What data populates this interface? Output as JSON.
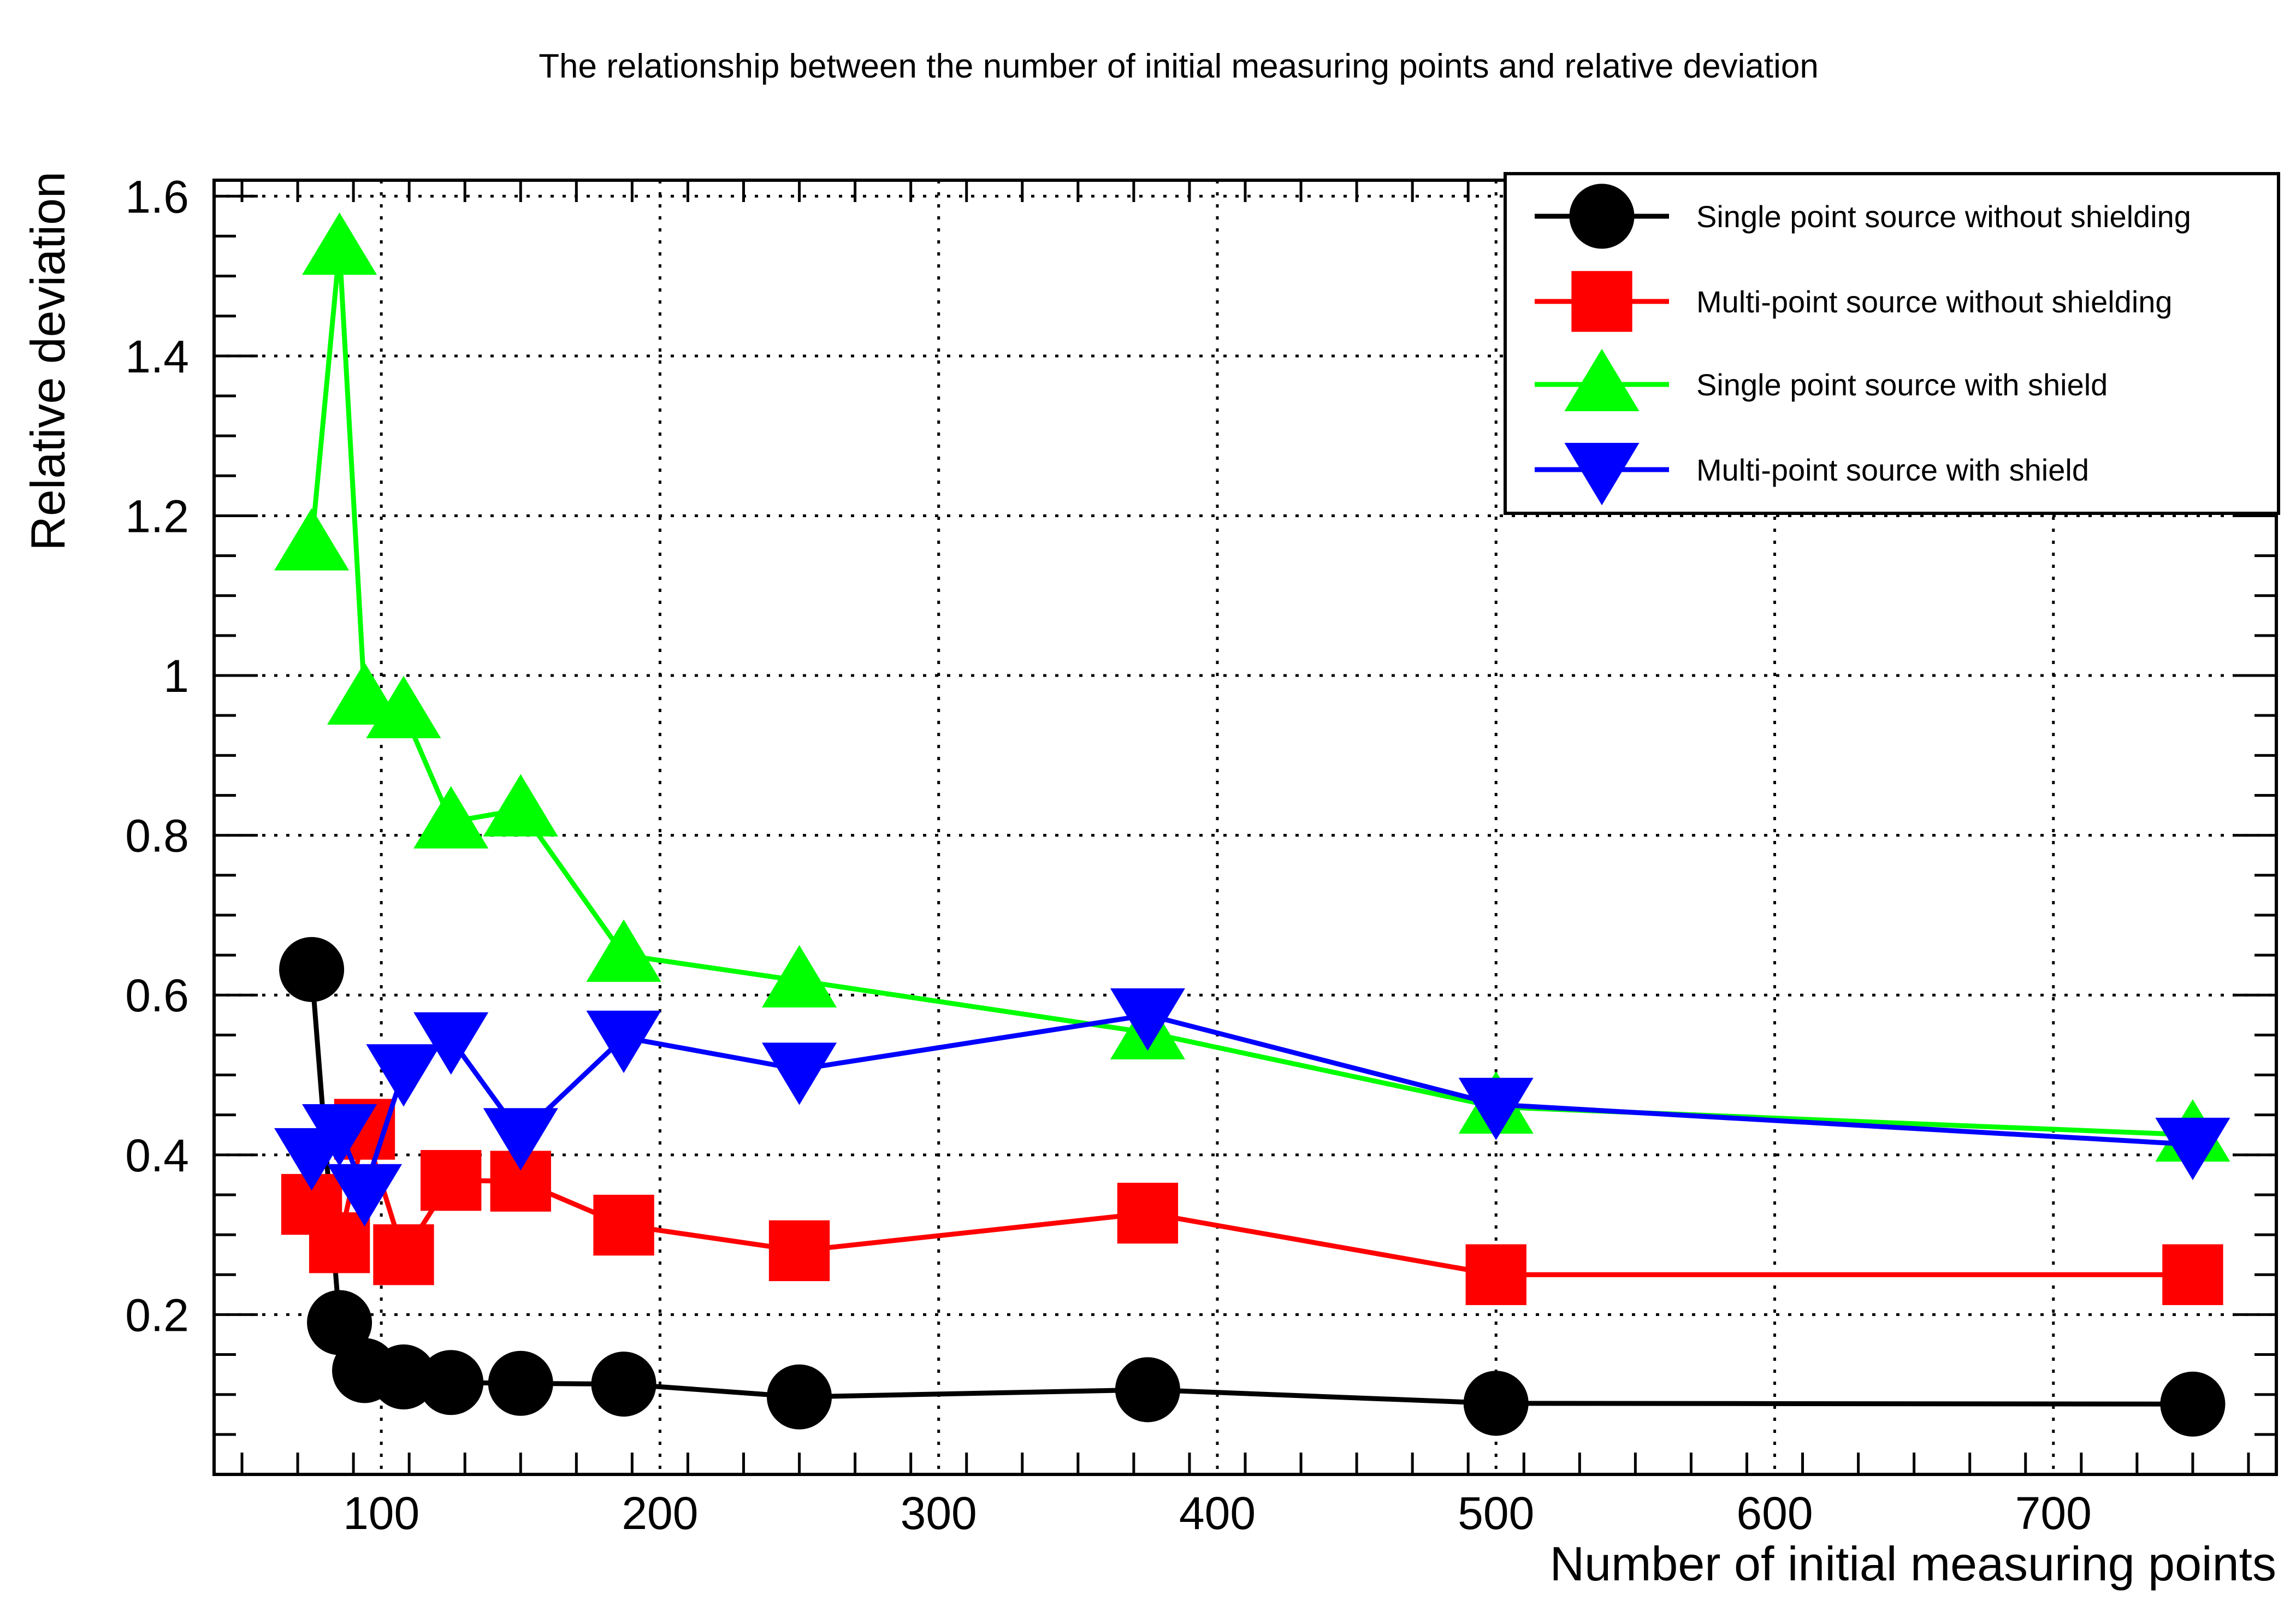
{
  "chart_data": {
    "type": "line",
    "title": "The relationship between the number of initial measuring points and relative deviation",
    "xlabel": "Number of initial measuring points",
    "ylabel": "Relative deviation",
    "xlim": [
      40,
      780
    ],
    "ylim": [
      0,
      1.62
    ],
    "xticks": [
      100,
      200,
      300,
      400,
      500,
      600,
      700
    ],
    "xtick_labels": [
      "100",
      "200",
      "300",
      "400",
      "500",
      "600",
      "700"
    ],
    "yticks": [
      0.2,
      0.4,
      0.6,
      0.8,
      1.0,
      1.2,
      1.4,
      1.6
    ],
    "ytick_labels": [
      "0.2",
      "0.4",
      "0.6",
      "0.8",
      "1",
      "1.2",
      "1.4",
      "1.6"
    ],
    "grid": true,
    "legend_position": "top-right",
    "series": [
      {
        "name": "Single point source without shielding",
        "color": "#000000",
        "marker": "circle",
        "x": [
          75,
          85,
          94,
          108,
          125,
          150,
          187,
          250,
          375,
          500,
          750
        ],
        "values": [
          0.632,
          0.19,
          0.13,
          0.122,
          0.115,
          0.114,
          0.113,
          0.097,
          0.106,
          0.089,
          0.088
        ]
      },
      {
        "name": "Multi-point source without shielding",
        "color": "#ff0000",
        "marker": "square",
        "x": [
          75,
          85,
          94,
          108,
          125,
          150,
          187,
          250,
          375,
          500,
          750
        ],
        "values": [
          0.338,
          0.29,
          0.432,
          0.275,
          0.368,
          0.367,
          0.312,
          0.28,
          0.327,
          0.25,
          0.25
        ]
      },
      {
        "name": "Single point source with shield",
        "color": "#00ff00",
        "marker": "triangle-up",
        "x": [
          75,
          85,
          94,
          108,
          125,
          150,
          187,
          250,
          375,
          500,
          750
        ],
        "values": [
          1.165,
          1.535,
          0.972,
          0.955,
          0.817,
          0.832,
          0.65,
          0.618,
          0.553,
          0.46,
          0.425
        ]
      },
      {
        "name": "Multi-point source with shield",
        "color": "#0000ff",
        "marker": "triangle-down",
        "x": [
          75,
          85,
          94,
          108,
          125,
          150,
          187,
          250,
          375,
          500,
          750
        ],
        "values": [
          0.4,
          0.43,
          0.355,
          0.505,
          0.545,
          0.425,
          0.547,
          0.507,
          0.575,
          0.463,
          0.413
        ]
      }
    ]
  }
}
